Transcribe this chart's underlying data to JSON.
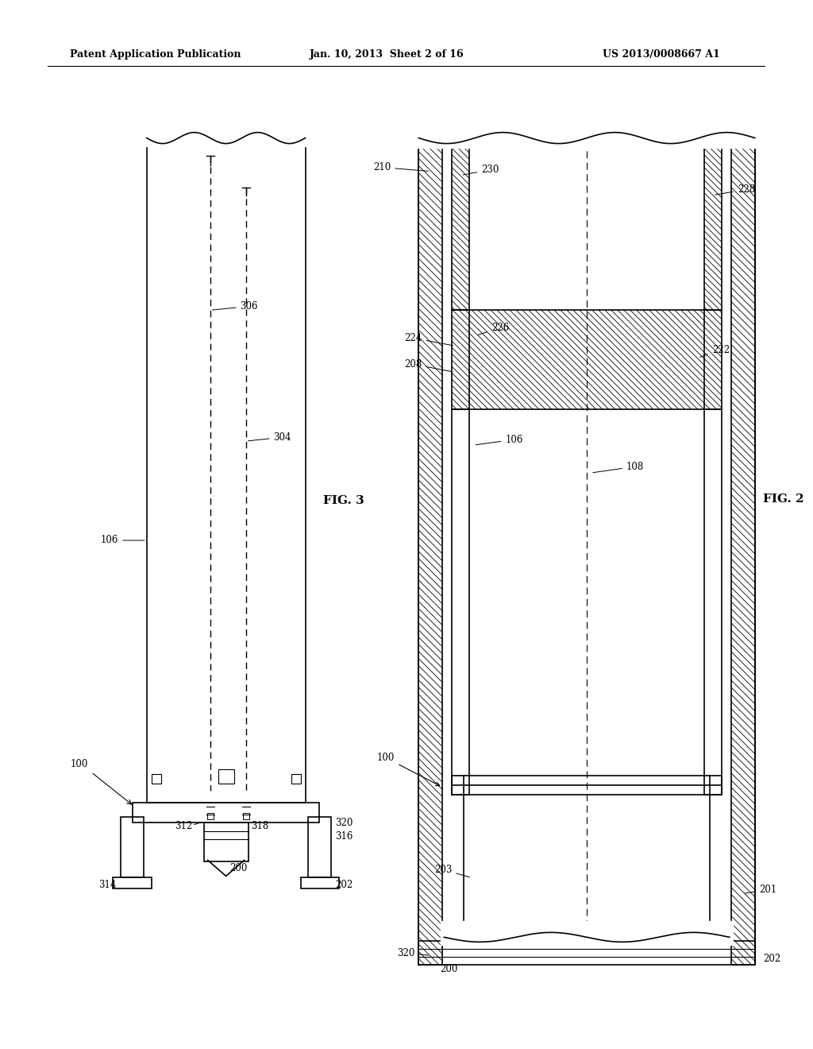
{
  "bg_color": "#ffffff",
  "header_text_left": "Patent Application Publication",
  "header_text_mid": "Jan. 10, 2013  Sheet 2 of 16",
  "header_text_right": "US 2013/0008667 A1",
  "fig3_label": "FIG. 3",
  "fig2_label": "FIG. 2"
}
